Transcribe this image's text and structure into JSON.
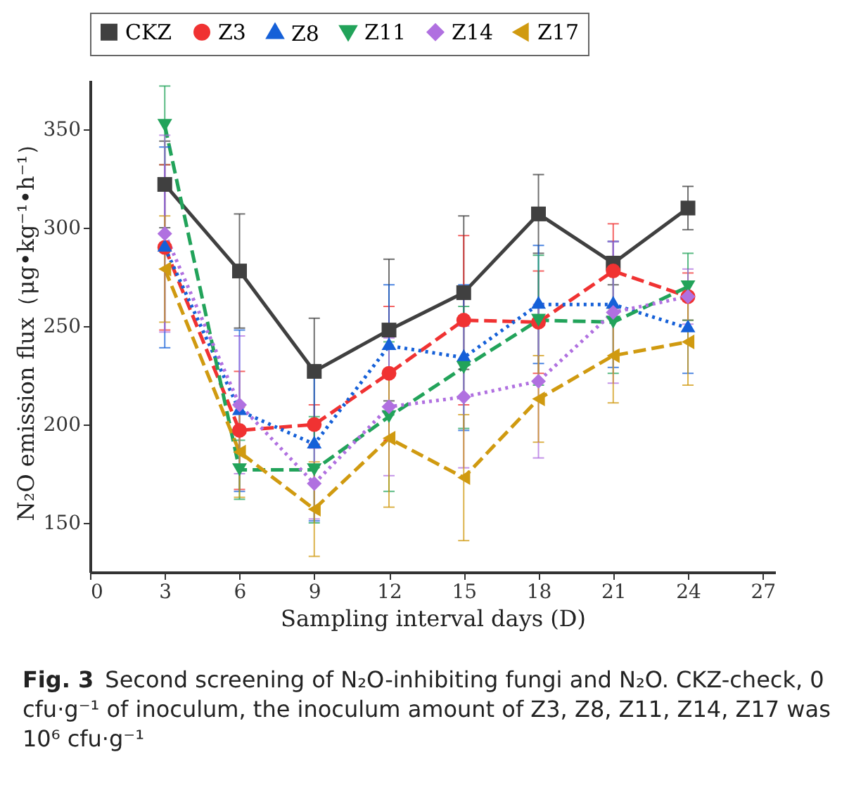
{
  "chart_data": {
    "type": "line",
    "xlabel": "Sampling interval days (D)",
    "ylabel": "N₂O emission flux（μg•kg⁻¹•h⁻¹）",
    "x": [
      3,
      6,
      9,
      12,
      15,
      18,
      21,
      24
    ],
    "xlim": [
      0,
      27.5
    ],
    "xticks": [
      0,
      3,
      6,
      9,
      12,
      15,
      18,
      21,
      24,
      27
    ],
    "ylim": [
      125,
      375
    ],
    "yticks": [
      150,
      200,
      250,
      300,
      350
    ],
    "grid": false,
    "legend": "top",
    "series": [
      {
        "name": "CKZ",
        "color": "#404040",
        "marker": "square",
        "line_style": "solid",
        "values": [
          322,
          278,
          227,
          248,
          267,
          307,
          282,
          310
        ],
        "errors": [
          22,
          29,
          27,
          36,
          39,
          20,
          11,
          11
        ]
      },
      {
        "name": "Z3",
        "color": "#f03232",
        "marker": "circle",
        "line_style": "dashed",
        "values": [
          290,
          197,
          200,
          226,
          253,
          252,
          278,
          265
        ],
        "errors": [
          42,
          30,
          10,
          34,
          43,
          26,
          24,
          12
        ]
      },
      {
        "name": "Z8",
        "color": "#1560d8",
        "marker": "triangle",
        "line_style": "dotted",
        "values": [
          290,
          207,
          190,
          240,
          234,
          261,
          261,
          249
        ],
        "errors": [
          51,
          41,
          39,
          31,
          37,
          30,
          32,
          23
        ]
      },
      {
        "name": "Z11",
        "color": "#22a35a",
        "marker": "triangle-down",
        "line_style": "dashed",
        "values": [
          352,
          177,
          177,
          204,
          229,
          253,
          252,
          270
        ],
        "errors": [
          20,
          15,
          27,
          38,
          31,
          33,
          26,
          17
        ]
      },
      {
        "name": "Z14",
        "color": "#b070e0",
        "marker": "diamond",
        "line_style": "dotted",
        "values": [
          297,
          210,
          170,
          209,
          214,
          222,
          257,
          265
        ],
        "errors": [
          50,
          35,
          18,
          35,
          36,
          39,
          36,
          14
        ]
      },
      {
        "name": "Z17",
        "color": "#d09a10",
        "marker": "triangle-left",
        "line_style": "dashed",
        "values": [
          279,
          186,
          157,
          193,
          173,
          213,
          235,
          242
        ],
        "errors": [
          27,
          23,
          24,
          35,
          32,
          22,
          24,
          22
        ]
      }
    ],
    "annotations": [
      "Fig. 3",
      "Second screening of N₂O-inhibiting fungi and N₂O. CKZ-check, 0 cfu·g⁻¹ of inoculum, the inoculum amount of Z3, Z8, Z11, Z14, Z17 was 10⁶ cfu·g⁻¹"
    ]
  }
}
